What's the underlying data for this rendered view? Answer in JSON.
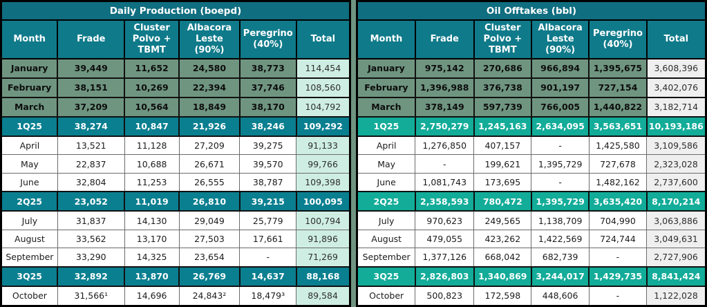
{
  "colors": {
    "title_bar": "#0f6e80",
    "column_header": "#0f7a8a",
    "highlight_row_green": "#6f9580",
    "quarter_row_teal_left": "#0a7f90",
    "quarter_row_green_right": "#12ac99",
    "total_col_mint_left": "#cfeee3",
    "total_col_gray_right": "#efefef",
    "page_background": "#6f9580"
  },
  "tables": [
    {
      "title": "Daily Production (boepd)",
      "columns": [
        "Month",
        "Frade",
        "Cluster Polvo + TBMT",
        "Albacora Leste (90%)",
        "Peregrino (40%)",
        "Total"
      ],
      "rows": [
        {
          "type": "hl",
          "cells": [
            "January",
            "39,449",
            "11,652",
            "24,580",
            "38,773",
            "114,454"
          ]
        },
        {
          "type": "hl",
          "cells": [
            "February",
            "38,151",
            "10,269",
            "22,394",
            "37,746",
            "108,560"
          ]
        },
        {
          "type": "hl",
          "cells": [
            "March",
            "37,209",
            "10,564",
            "18,849",
            "38,170",
            "104,792"
          ]
        },
        {
          "type": "q",
          "cells": [
            "1Q25",
            "38,274",
            "10,847",
            "21,926",
            "38,246",
            "109,292"
          ]
        },
        {
          "type": "m",
          "cells": [
            "April",
            "13,521",
            "11,128",
            "27,209",
            "39,275",
            "91,133"
          ]
        },
        {
          "type": "m",
          "cells": [
            "May",
            "22,837",
            "10,688",
            "26,671",
            "39,570",
            "99,766"
          ]
        },
        {
          "type": "m",
          "cells": [
            "June",
            "32,804",
            "11,253",
            "26,555",
            "38,787",
            "109,398"
          ]
        },
        {
          "type": "q",
          "cells": [
            "2Q25",
            "23,052",
            "11,019",
            "26,810",
            "39,215",
            "100,095"
          ]
        },
        {
          "type": "m",
          "cells": [
            "July",
            "31,837",
            "14,130",
            "29,049",
            "25,779",
            "100,794"
          ]
        },
        {
          "type": "m",
          "cells": [
            "August",
            "33,562",
            "13,170",
            "27,503",
            "17,661",
            "91,896"
          ]
        },
        {
          "type": "m",
          "cells": [
            "September",
            "33,290",
            "14,325",
            "23,654",
            "-",
            "71,269"
          ]
        },
        {
          "type": "q",
          "cells": [
            "3Q25",
            "32,892",
            "13,870",
            "26,769",
            "14,637",
            "88,168"
          ]
        },
        {
          "type": "m",
          "cells": [
            "October",
            "31,566¹",
            "14,696",
            "24,843²",
            "18,479³",
            "89,584"
          ]
        }
      ]
    },
    {
      "title": "Oil Offtakes (bbl)",
      "columns": [
        "Month",
        "Frade",
        "Cluster Polvo + TBMT",
        "Albacora Leste (90%)",
        "Peregrino (40%)",
        "Total"
      ],
      "rows": [
        {
          "type": "hl",
          "cells": [
            "January",
            "975,142",
            "270,686",
            "966,894",
            "1,395,675",
            "3,608,396"
          ]
        },
        {
          "type": "hl",
          "cells": [
            "February",
            "1,396,988",
            "376,738",
            "901,197",
            "727,154",
            "3,402,076"
          ]
        },
        {
          "type": "hl",
          "cells": [
            "March",
            "378,149",
            "597,739",
            "766,005",
            "1,440,822",
            "3,182,714"
          ]
        },
        {
          "type": "q",
          "cells": [
            "1Q25",
            "2,750,279",
            "1,245,163",
            "2,634,095",
            "3,563,651",
            "10,193,186"
          ]
        },
        {
          "type": "m",
          "cells": [
            "April",
            "1,276,850",
            "407,157",
            "-",
            "1,425,580",
            "3,109,586"
          ]
        },
        {
          "type": "m",
          "cells": [
            "May",
            "-",
            "199,621",
            "1,395,729",
            "727,678",
            "2,323,028"
          ]
        },
        {
          "type": "m",
          "cells": [
            "June",
            "1,081,743",
            "173,695",
            "-",
            "1,482,162",
            "2,737,600"
          ]
        },
        {
          "type": "q",
          "cells": [
            "2Q25",
            "2,358,593",
            "780,472",
            "1,395,729",
            "3,635,420",
            "8,170,214"
          ]
        },
        {
          "type": "m",
          "cells": [
            "July",
            "970,623",
            "249,565",
            "1,138,709",
            "704,990",
            "3,063,886"
          ]
        },
        {
          "type": "m",
          "cells": [
            "August",
            "479,055",
            "423,262",
            "1,422,569",
            "724,744",
            "3,049,631"
          ]
        },
        {
          "type": "m",
          "cells": [
            "September",
            "1,377,126",
            "668,042",
            "682,739",
            "-",
            "2,727,906"
          ]
        },
        {
          "type": "q",
          "cells": [
            "3Q25",
            "2,826,803",
            "1,340,869",
            "3,244,017",
            "1,429,735",
            "8,841,424"
          ]
        },
        {
          "type": "m",
          "cells": [
            "October",
            "500,823",
            "172,598",
            "448,606",
            "-",
            "1,122,028"
          ]
        }
      ]
    }
  ]
}
